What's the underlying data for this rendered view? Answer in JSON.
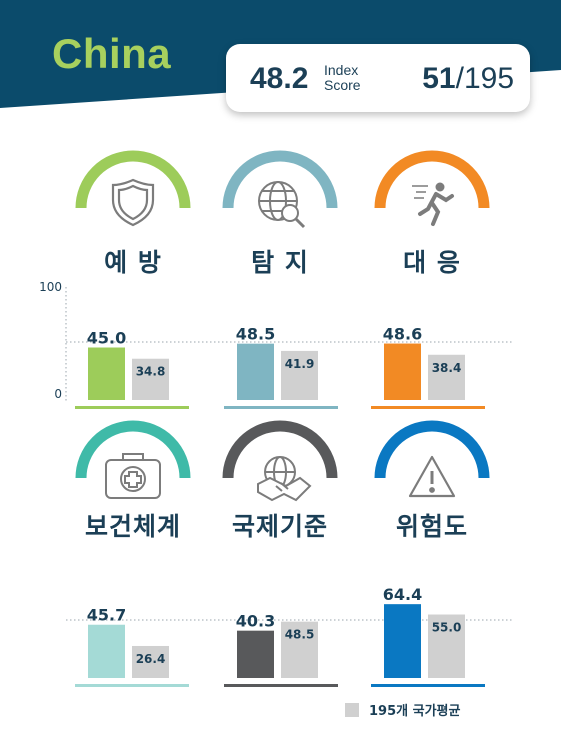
{
  "header": {
    "country": "China",
    "index_score": "48.2",
    "index_label_1": "Index",
    "index_label_2": "Score",
    "rank": "51",
    "rank_total": "/195"
  },
  "legend": {
    "label": "195개 국가평균"
  },
  "colors": {
    "banner": "#0b4b6b",
    "navy_text": "#1b3f56",
    "average_bar": "#d0d0d0"
  },
  "chart_data": {
    "type": "bar",
    "ylim": [
      0,
      100
    ],
    "yticks": [
      "0",
      "100"
    ],
    "reference_line": 50,
    "series": [
      {
        "name": "China"
      },
      {
        "name": "195개 국가평균"
      }
    ],
    "categories": [
      {
        "label": "예 방",
        "icon": "shield-icon",
        "color": "#9dcc5a",
        "value": 45.0,
        "value_label": "45.0",
        "average": 34.8,
        "average_label": "34.8"
      },
      {
        "label": "탐 지",
        "icon": "globe-search-icon",
        "color": "#7fb5c2",
        "value": 48.5,
        "value_label": "48.5",
        "average": 41.9,
        "average_label": "41.9"
      },
      {
        "label": "대 응",
        "icon": "running-person-icon",
        "color": "#f28a24",
        "value": 48.6,
        "value_label": "48.6",
        "average": 38.4,
        "average_label": "38.4"
      },
      {
        "label": "보건체계",
        "icon": "first-aid-kit-icon",
        "color": "#a4dad6",
        "value": 45.7,
        "value_label": "45.7",
        "average": 26.4,
        "average_label": "26.4"
      },
      {
        "label": "국제기준",
        "icon": "handshake-globe-icon",
        "color": "#58595b",
        "value": 40.3,
        "value_label": "40.3",
        "average": 48.5,
        "average_label": "48.5"
      },
      {
        "label": "위험도",
        "icon": "warning-icon",
        "color": "#0a78c2",
        "value": 64.4,
        "value_label": "64.4",
        "average": 55.0,
        "average_label": "55.0"
      }
    ]
  }
}
